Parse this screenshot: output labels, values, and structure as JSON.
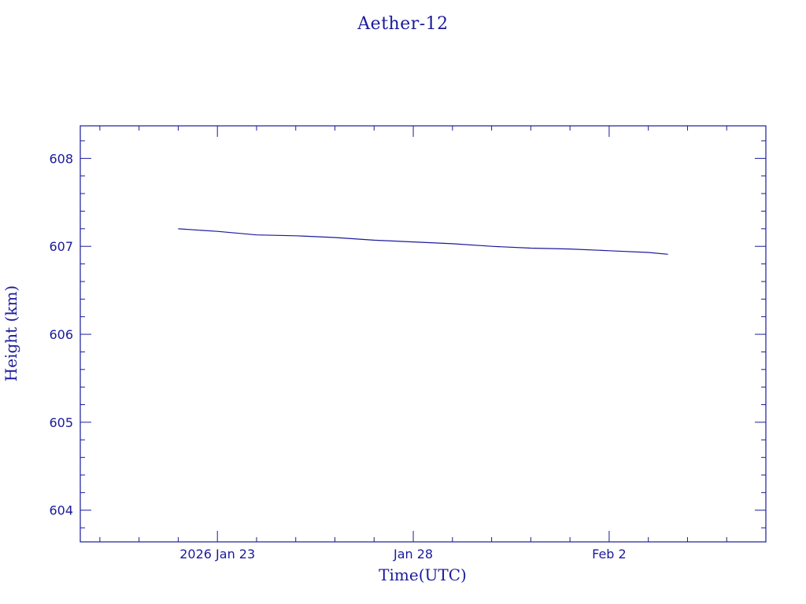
{
  "chart_data": {
    "type": "line",
    "title": "Aether-12",
    "xlabel": "Time(UTC)",
    "ylabel": "Height (km)",
    "x_ticks": [
      {
        "date": "2026-01-23",
        "label": "2026 Jan 23"
      },
      {
        "date": "2026-01-28",
        "label": "Jan 28"
      },
      {
        "date": "2026-02-02",
        "label": "Feb  2"
      }
    ],
    "y_ticks": [
      604,
      605,
      606,
      607,
      608
    ],
    "xlim": [
      "2026-01-19T12:00",
      "2026-02-06T00:00"
    ],
    "ylim": [
      603.64,
      608.37
    ],
    "grid": false,
    "color": "#1a1a9c",
    "series": [
      {
        "x": [
          "2026-01-22T00:00",
          "2026-01-23T00:00",
          "2026-01-24T00:00",
          "2026-01-25T00:00",
          "2026-01-26T00:00",
          "2026-01-27T00:00",
          "2026-01-28T00:00",
          "2026-01-29T00:00",
          "2026-01-30T00:00",
          "2026-01-31T00:00",
          "2026-02-01T00:00",
          "2026-02-02T00:00",
          "2026-02-03T00:00",
          "2026-02-03T12:00"
        ],
        "y": [
          607.2,
          607.17,
          607.13,
          607.12,
          607.1,
          607.07,
          607.05,
          607.03,
          607.0,
          606.98,
          606.97,
          606.95,
          606.93,
          606.91
        ]
      }
    ]
  }
}
